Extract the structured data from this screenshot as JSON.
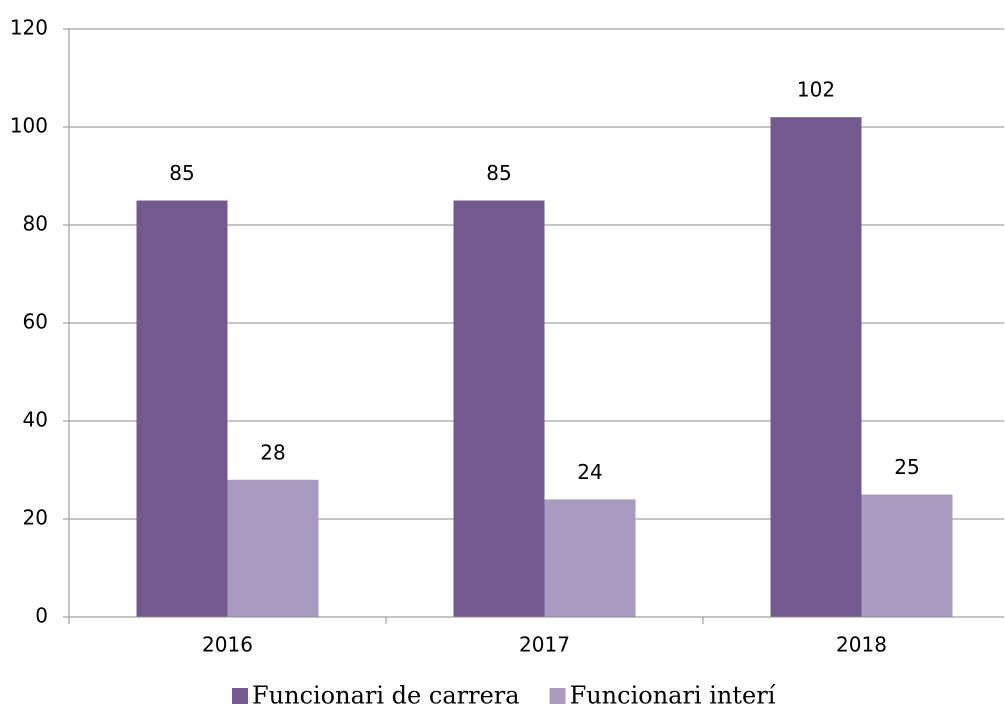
{
  "chart_data": {
    "type": "bar",
    "categories": [
      "2016",
      "2017",
      "2018"
    ],
    "series": [
      {
        "name": "Funcionari de carrera",
        "color": "#725a8f",
        "values": [
          85,
          85,
          102
        ]
      },
      {
        "name": "Funcionari interí",
        "color": "#a99bbf",
        "values": [
          28,
          24,
          25
        ]
      }
    ],
    "ylim": [
      0,
      120
    ],
    "yticks": [
      0,
      20,
      40,
      60,
      80,
      100,
      120
    ],
    "grid": true,
    "legend": "bottom"
  }
}
